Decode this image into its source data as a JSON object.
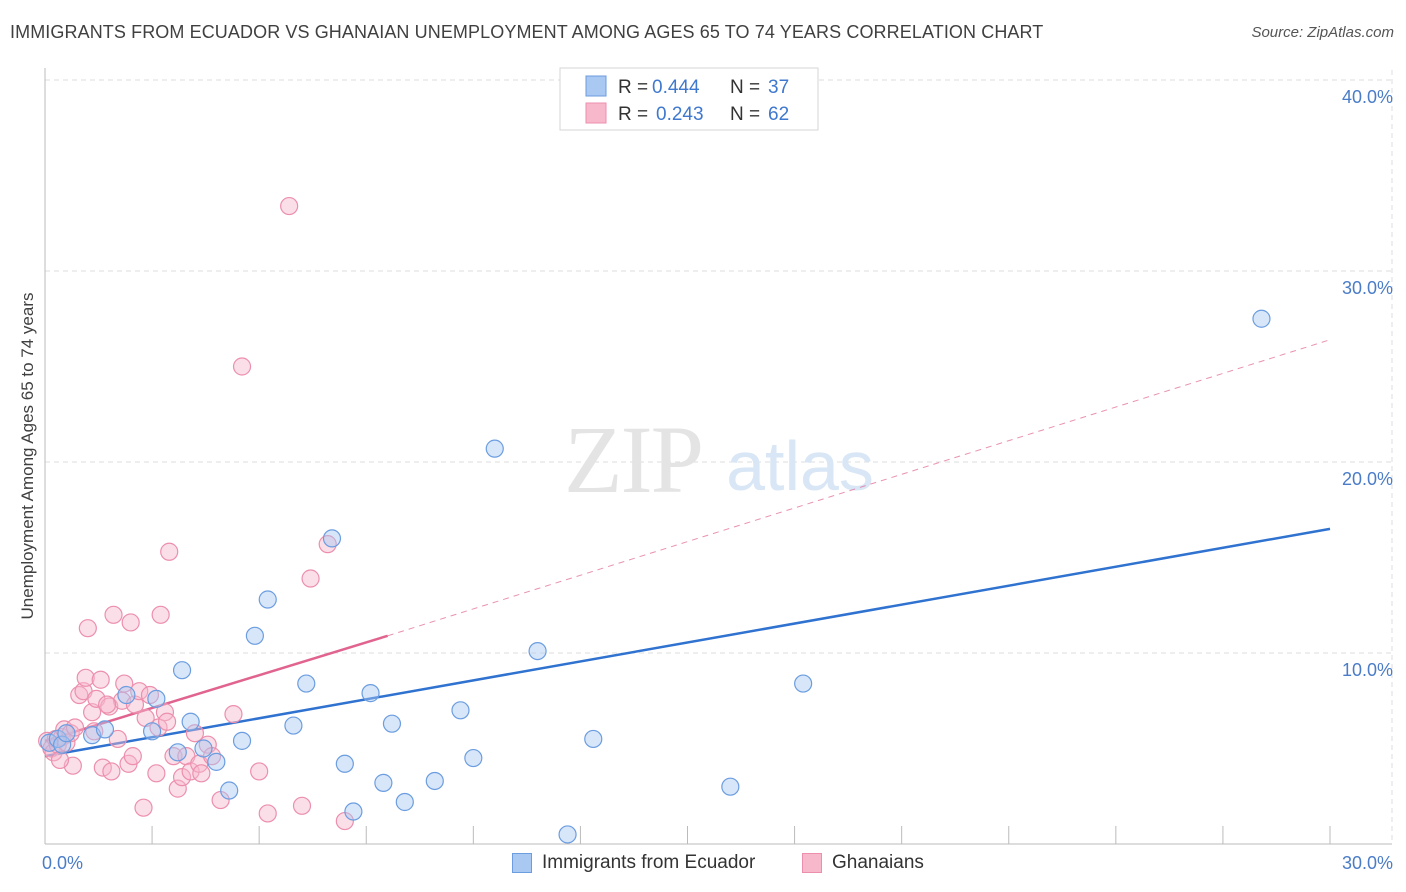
{
  "title": "IMMIGRANTS FROM ECUADOR VS GHANAIAN UNEMPLOYMENT AMONG AGES 65 TO 74 YEARS CORRELATION CHART",
  "source": "Source: ZipAtlas.com",
  "watermark": {
    "zip": "ZIP",
    "atlas": "atlas"
  },
  "legend": {
    "r_label": "R =",
    "n_label": "N =",
    "rows": [
      {
        "r": "0.444",
        "n": "37"
      },
      {
        "r": "0.243",
        "n": "62"
      }
    ]
  },
  "colors": {
    "blue_fill": "#a9c8f2",
    "blue_stroke": "#6b9de0",
    "blue_line": "#2f72d0",
    "pink_fill": "#f7b8cc",
    "pink_stroke": "#ec8fad",
    "pink_line": "#e0648f",
    "grid": "#dedede",
    "axis_label": "#4a7cc7"
  },
  "chart_data": {
    "type": "scatter",
    "title": "IMMIGRANTS FROM ECUADOR VS GHANAIAN UNEMPLOYMENT AMONG AGES 65 TO 74 YEARS CORRELATION CHART",
    "xlabel": "",
    "ylabel": "Unemployment Among Ages 65 to 74 years",
    "xlim": [
      0,
      30
    ],
    "ylim": [
      0,
      40
    ],
    "x_tick_labels": [
      "0.0%",
      "30.0%"
    ],
    "y_ticks": [
      10,
      20,
      30,
      40
    ],
    "y_tick_labels": [
      "10.0%",
      "20.0%",
      "30.0%",
      "40.0%"
    ],
    "grid": true,
    "legend_position": "top-center",
    "series": [
      {
        "name": "Immigrants from Ecuador",
        "color": "blue",
        "r": 0.444,
        "n": 37,
        "trend": {
          "x0": 0,
          "y0": 4.6,
          "x1": 30,
          "y1": 16.5
        },
        "trend_dashed_extension": null,
        "points": [
          [
            0.1,
            5.3
          ],
          [
            0.3,
            5.5
          ],
          [
            0.4,
            5.2
          ],
          [
            0.5,
            5.8
          ],
          [
            1.1,
            5.7
          ],
          [
            1.4,
            6.0
          ],
          [
            1.9,
            7.8
          ],
          [
            2.5,
            5.9
          ],
          [
            2.6,
            7.6
          ],
          [
            3.1,
            4.8
          ],
          [
            3.2,
            9.1
          ],
          [
            3.4,
            6.4
          ],
          [
            3.7,
            5.0
          ],
          [
            4.0,
            4.3
          ],
          [
            4.3,
            2.8
          ],
          [
            4.6,
            5.4
          ],
          [
            4.9,
            10.9
          ],
          [
            5.2,
            12.8
          ],
          [
            5.8,
            6.2
          ],
          [
            6.1,
            8.4
          ],
          [
            6.7,
            16.0
          ],
          [
            7.0,
            4.2
          ],
          [
            7.2,
            1.7
          ],
          [
            7.6,
            7.9
          ],
          [
            7.9,
            3.2
          ],
          [
            8.1,
            6.3
          ],
          [
            8.4,
            2.2
          ],
          [
            9.1,
            3.3
          ],
          [
            9.7,
            7.0
          ],
          [
            10.0,
            4.5
          ],
          [
            10.5,
            20.7
          ],
          [
            11.5,
            10.1
          ],
          [
            12.2,
            0.5
          ],
          [
            12.8,
            5.5
          ],
          [
            16.0,
            3.0
          ],
          [
            17.7,
            8.4
          ],
          [
            28.4,
            27.5
          ]
        ]
      },
      {
        "name": "Ghanaians",
        "color": "pink",
        "r": 0.243,
        "n": 62,
        "trend": {
          "x0": 0,
          "y0": 5.4,
          "x1": 8.0,
          "y1": 10.9
        },
        "trend_dashed_extension": {
          "x0": 8.0,
          "y0": 10.9,
          "x1": 30,
          "y1": 26.4
        },
        "points": [
          [
            0.05,
            5.4
          ],
          [
            0.15,
            5.0
          ],
          [
            0.2,
            4.8
          ],
          [
            0.25,
            5.5
          ],
          [
            0.3,
            5.2
          ],
          [
            0.4,
            5.6
          ],
          [
            0.45,
            6.0
          ],
          [
            0.5,
            5.3
          ],
          [
            0.6,
            5.8
          ],
          [
            0.65,
            4.1
          ],
          [
            0.8,
            7.8
          ],
          [
            0.9,
            8.0
          ],
          [
            0.95,
            8.7
          ],
          [
            1.0,
            11.3
          ],
          [
            1.1,
            6.9
          ],
          [
            1.15,
            5.9
          ],
          [
            1.2,
            7.6
          ],
          [
            1.3,
            8.6
          ],
          [
            1.35,
            4.0
          ],
          [
            1.5,
            7.2
          ],
          [
            1.55,
            3.8
          ],
          [
            1.7,
            5.5
          ],
          [
            1.8,
            7.5
          ],
          [
            1.85,
            8.4
          ],
          [
            1.95,
            4.2
          ],
          [
            2.05,
            4.6
          ],
          [
            2.1,
            7.3
          ],
          [
            2.2,
            8.0
          ],
          [
            2.3,
            1.9
          ],
          [
            2.45,
            7.8
          ],
          [
            2.6,
            3.7
          ],
          [
            2.65,
            6.1
          ],
          [
            2.7,
            12.0
          ],
          [
            2.8,
            6.9
          ],
          [
            2.85,
            6.4
          ],
          [
            2.9,
            15.3
          ],
          [
            3.0,
            4.6
          ],
          [
            3.1,
            2.9
          ],
          [
            3.2,
            3.5
          ],
          [
            3.3,
            4.6
          ],
          [
            3.4,
            3.8
          ],
          [
            3.5,
            5.8
          ],
          [
            3.6,
            4.2
          ],
          [
            3.65,
            3.7
          ],
          [
            3.8,
            5.2
          ],
          [
            3.9,
            4.6
          ],
          [
            4.1,
            2.3
          ],
          [
            4.4,
            6.8
          ],
          [
            4.6,
            25.0
          ],
          [
            5.0,
            3.8
          ],
          [
            5.2,
            1.6
          ],
          [
            5.7,
            33.4
          ],
          [
            6.0,
            2.0
          ],
          [
            6.2,
            13.9
          ],
          [
            6.6,
            15.7
          ],
          [
            7.0,
            1.2
          ],
          [
            1.6,
            12.0
          ],
          [
            2.0,
            11.6
          ],
          [
            0.7,
            6.1
          ],
          [
            1.45,
            7.3
          ],
          [
            2.35,
            6.6
          ],
          [
            0.35,
            4.4
          ]
        ]
      }
    ]
  },
  "bottom_legend": [
    {
      "label": "Immigrants from Ecuador",
      "color": "blue"
    },
    {
      "label": "Ghanaians",
      "color": "pink"
    }
  ]
}
